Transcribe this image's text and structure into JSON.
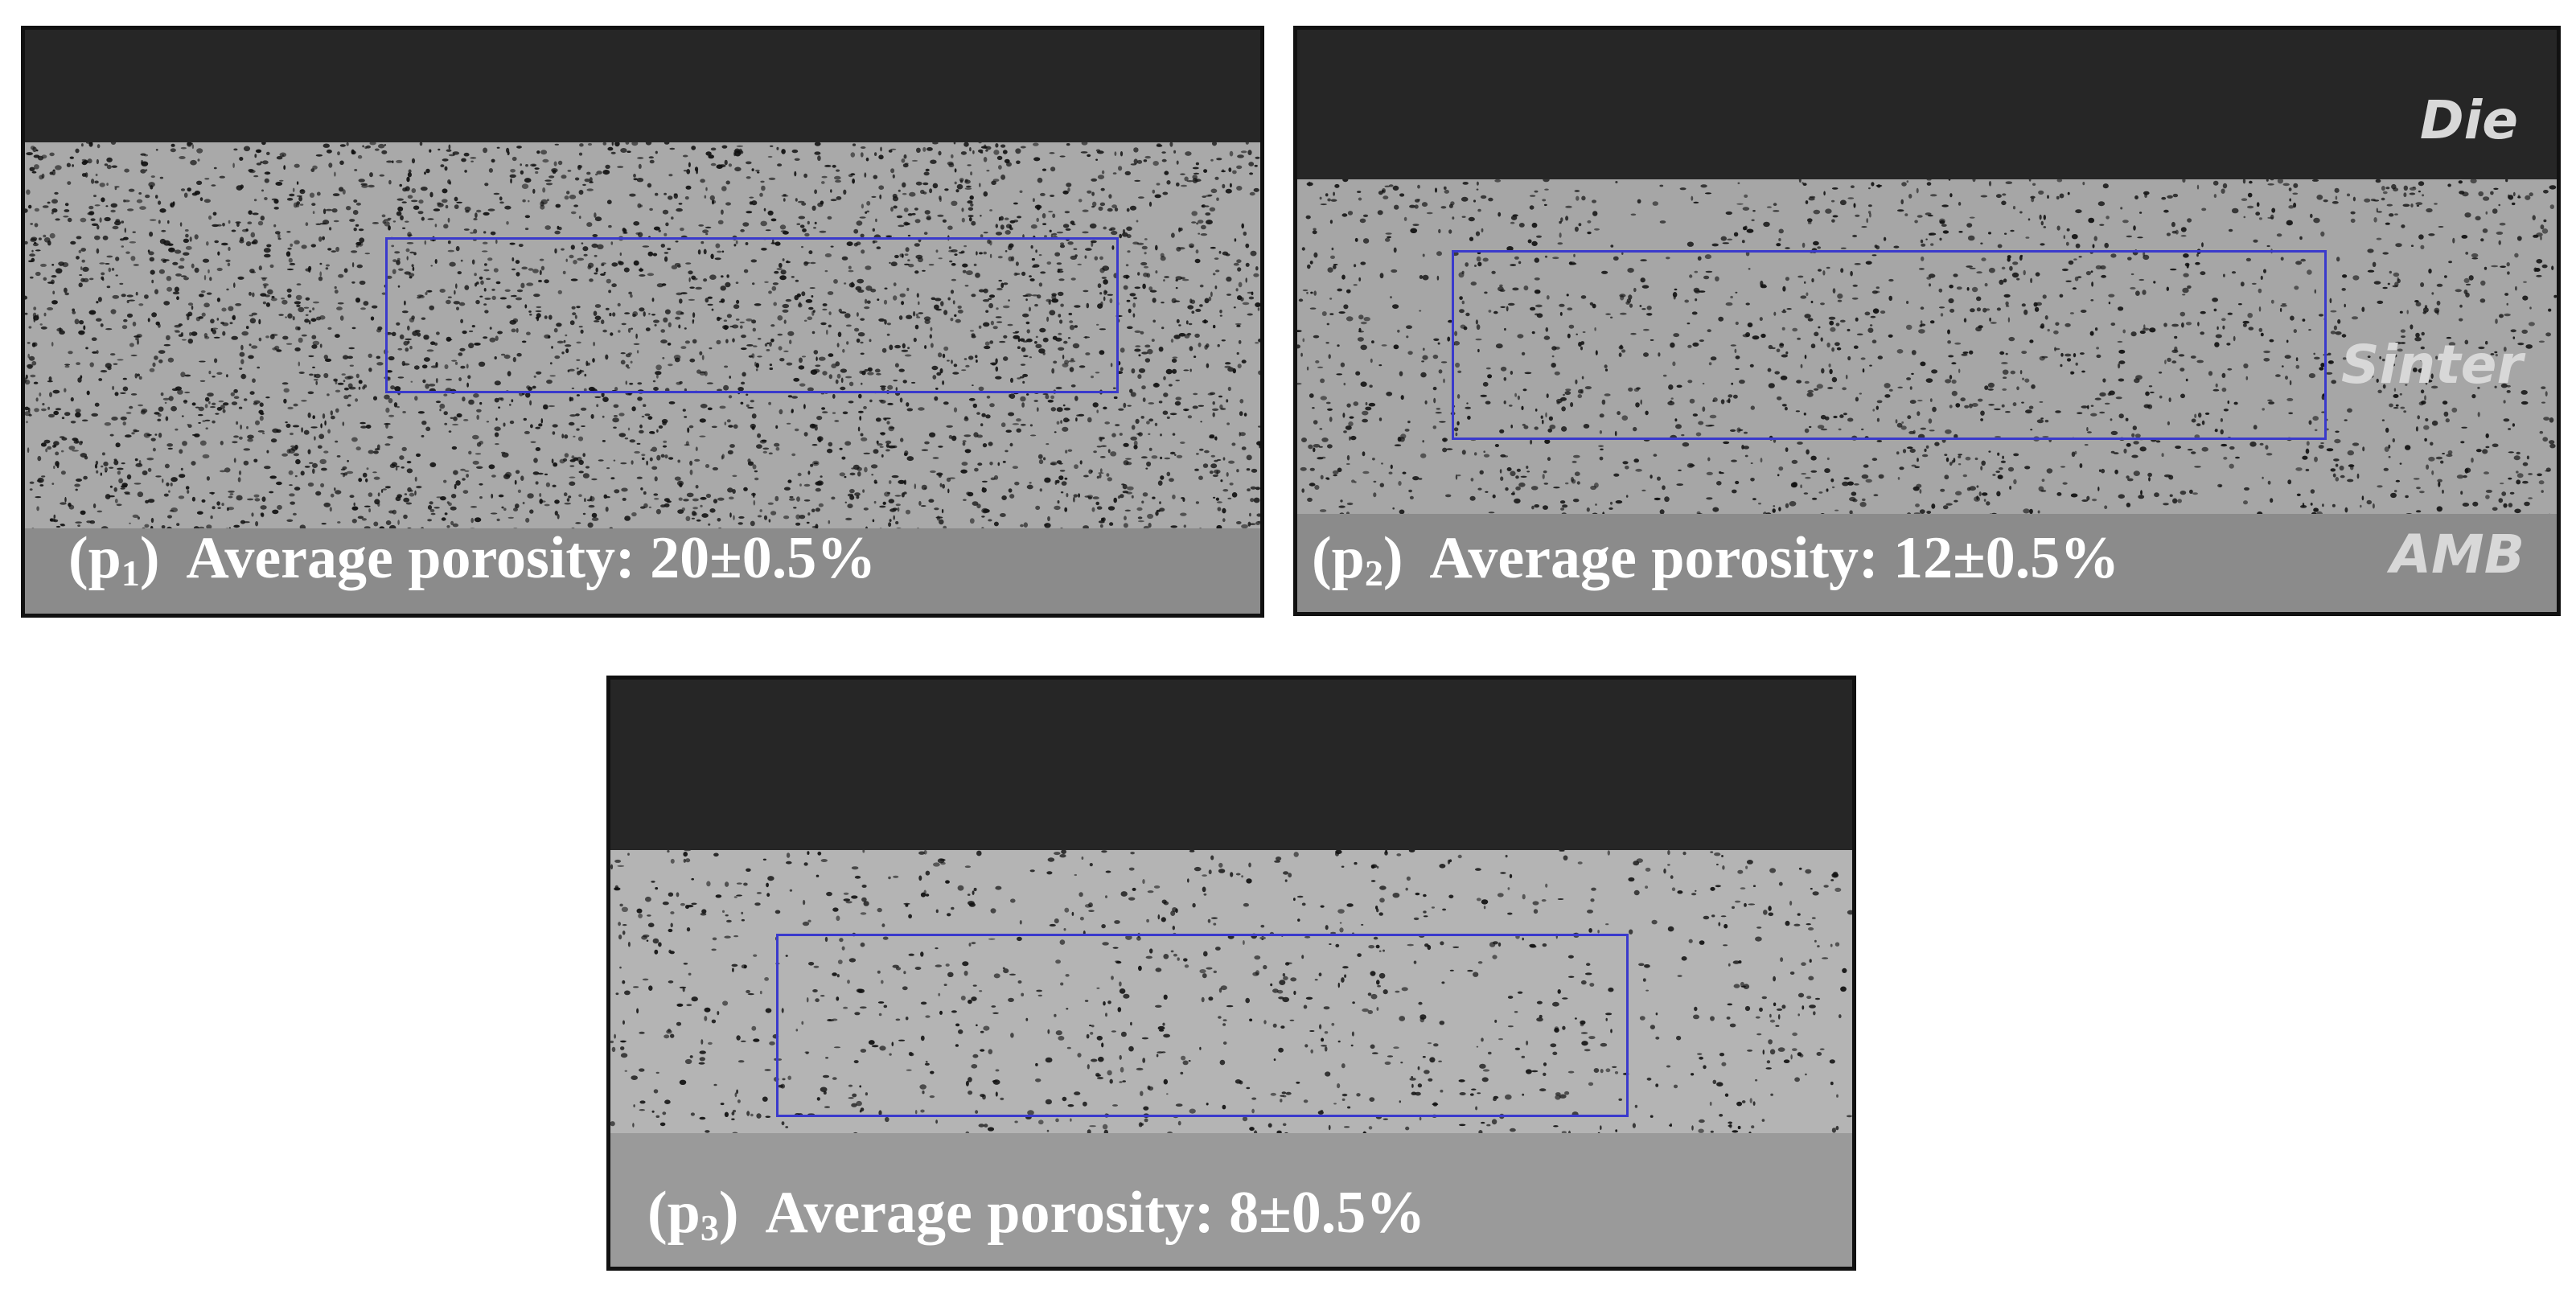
{
  "panels": [
    {
      "id": "p1",
      "label_prefix": "(p",
      "label_sub": "1",
      "label_suffix": ")",
      "caption": "Average porosity: 20±0.5%",
      "porosity": 20
    },
    {
      "id": "p2",
      "label_prefix": "(p",
      "label_sub": "2",
      "label_suffix": ")",
      "caption": "Average porosity: 12±0.5%",
      "porosity": 12
    },
    {
      "id": "p3",
      "label_prefix": "(p",
      "label_sub": "3",
      "label_suffix": ")",
      "caption": "Average porosity: 8±0.5%",
      "porosity": 8
    }
  ],
  "layer_labels": {
    "die": "Die",
    "sinter": "Sinter",
    "amb": "AMB"
  },
  "colors": {
    "die": "#262626",
    "amb": "#8b8b8b",
    "roi_box": "#3a3acc",
    "pores": "#111111"
  }
}
